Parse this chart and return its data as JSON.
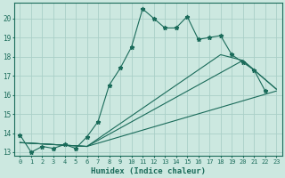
{
  "xlabel": "Humidex (Indice chaleur)",
  "background_color": "#cce8e0",
  "grid_color": "#aacfc8",
  "line_color": "#1a6b5a",
  "xlim": [
    -0.5,
    23.5
  ],
  "ylim": [
    12.8,
    20.8
  ],
  "yticks": [
    13,
    14,
    15,
    16,
    17,
    18,
    19,
    20
  ],
  "xticks": [
    0,
    1,
    2,
    3,
    4,
    5,
    6,
    7,
    8,
    9,
    10,
    11,
    12,
    13,
    14,
    15,
    16,
    17,
    18,
    19,
    20,
    21,
    22,
    23
  ],
  "series1_x": [
    0,
    1,
    2,
    3,
    4,
    5,
    6,
    7,
    8,
    9,
    10,
    11,
    12,
    13,
    14,
    15,
    16,
    17,
    18,
    19,
    20,
    21,
    22
  ],
  "series1_y": [
    13.9,
    13.0,
    13.3,
    13.2,
    13.4,
    13.2,
    13.8,
    14.6,
    16.5,
    17.4,
    18.5,
    20.5,
    20.0,
    19.5,
    19.5,
    20.1,
    18.9,
    19.0,
    19.1,
    18.1,
    17.7,
    17.3,
    16.2
  ],
  "series2_x": [
    0,
    6,
    23
  ],
  "series2_y": [
    13.5,
    13.3,
    16.2
  ],
  "series3_x": [
    0,
    6,
    20,
    23
  ],
  "series3_y": [
    13.5,
    13.3,
    17.8,
    16.3
  ],
  "series4_x": [
    0,
    6,
    18,
    20,
    23
  ],
  "series4_y": [
    13.5,
    13.3,
    18.1,
    17.8,
    16.3
  ]
}
